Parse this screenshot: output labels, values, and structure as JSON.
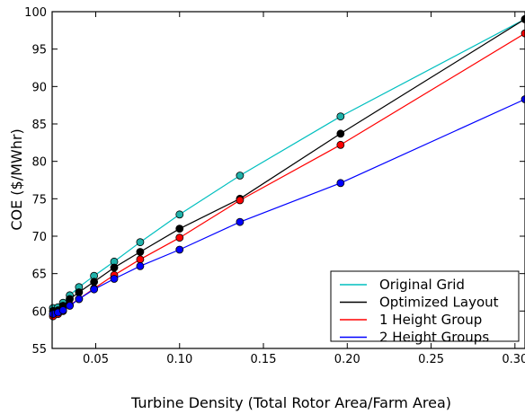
{
  "chart_data": {
    "type": "line",
    "title": "",
    "xlabel": "Turbine Density (Total Rotor Area/Farm Area)",
    "ylabel": "COE ($/MWhr)",
    "xlim": [
      0.024,
      0.306
    ],
    "ylim": [
      55,
      100
    ],
    "xticks": [
      0.05,
      0.1,
      0.15,
      0.2,
      0.25,
      0.3
    ],
    "xtick_labels": [
      "0.05",
      "0.10",
      "0.15",
      "0.20",
      "0.25",
      "0.30"
    ],
    "yticks": [
      55,
      60,
      65,
      70,
      75,
      80,
      85,
      90,
      95,
      100
    ],
    "ytick_labels": [
      "55",
      "60",
      "65",
      "70",
      "75",
      "80",
      "85",
      "90",
      "95",
      "100"
    ],
    "grid": false,
    "legend_position": "bottom-right",
    "x": [
      0.0245,
      0.0275,
      0.0305,
      0.0345,
      0.04,
      0.049,
      0.061,
      0.0765,
      0.1,
      0.136,
      0.196,
      0.306
    ],
    "series": [
      {
        "name": "Original Grid",
        "color": "#00bfbf",
        "marker_color": "#20b2aa",
        "values": [
          60.4,
          60.5,
          61.1,
          62.1,
          63.2,
          64.7,
          66.6,
          69.2,
          72.9,
          78.1,
          86.0,
          99.0
        ]
      },
      {
        "name": "Optimized Layout",
        "color": "#000000",
        "marker_color": "#000000",
        "values": [
          60.0,
          60.1,
          60.7,
          61.6,
          62.5,
          63.9,
          65.8,
          67.9,
          71.0,
          75.0,
          83.7,
          99.0
        ]
      },
      {
        "name": "1 Height Group",
        "color": "#ff0000",
        "marker_color": "#ff0000",
        "values": [
          59.3,
          59.6,
          60.0,
          60.8,
          61.6,
          63.0,
          64.8,
          66.9,
          69.8,
          74.8,
          82.2,
          97.1
        ]
      },
      {
        "name": "2 Height Groups",
        "color": "#0000ff",
        "marker_color": "#0000ff",
        "values": [
          59.6,
          59.8,
          60.1,
          60.7,
          61.6,
          62.9,
          64.3,
          66.0,
          68.2,
          71.9,
          77.1,
          88.3
        ]
      }
    ]
  }
}
